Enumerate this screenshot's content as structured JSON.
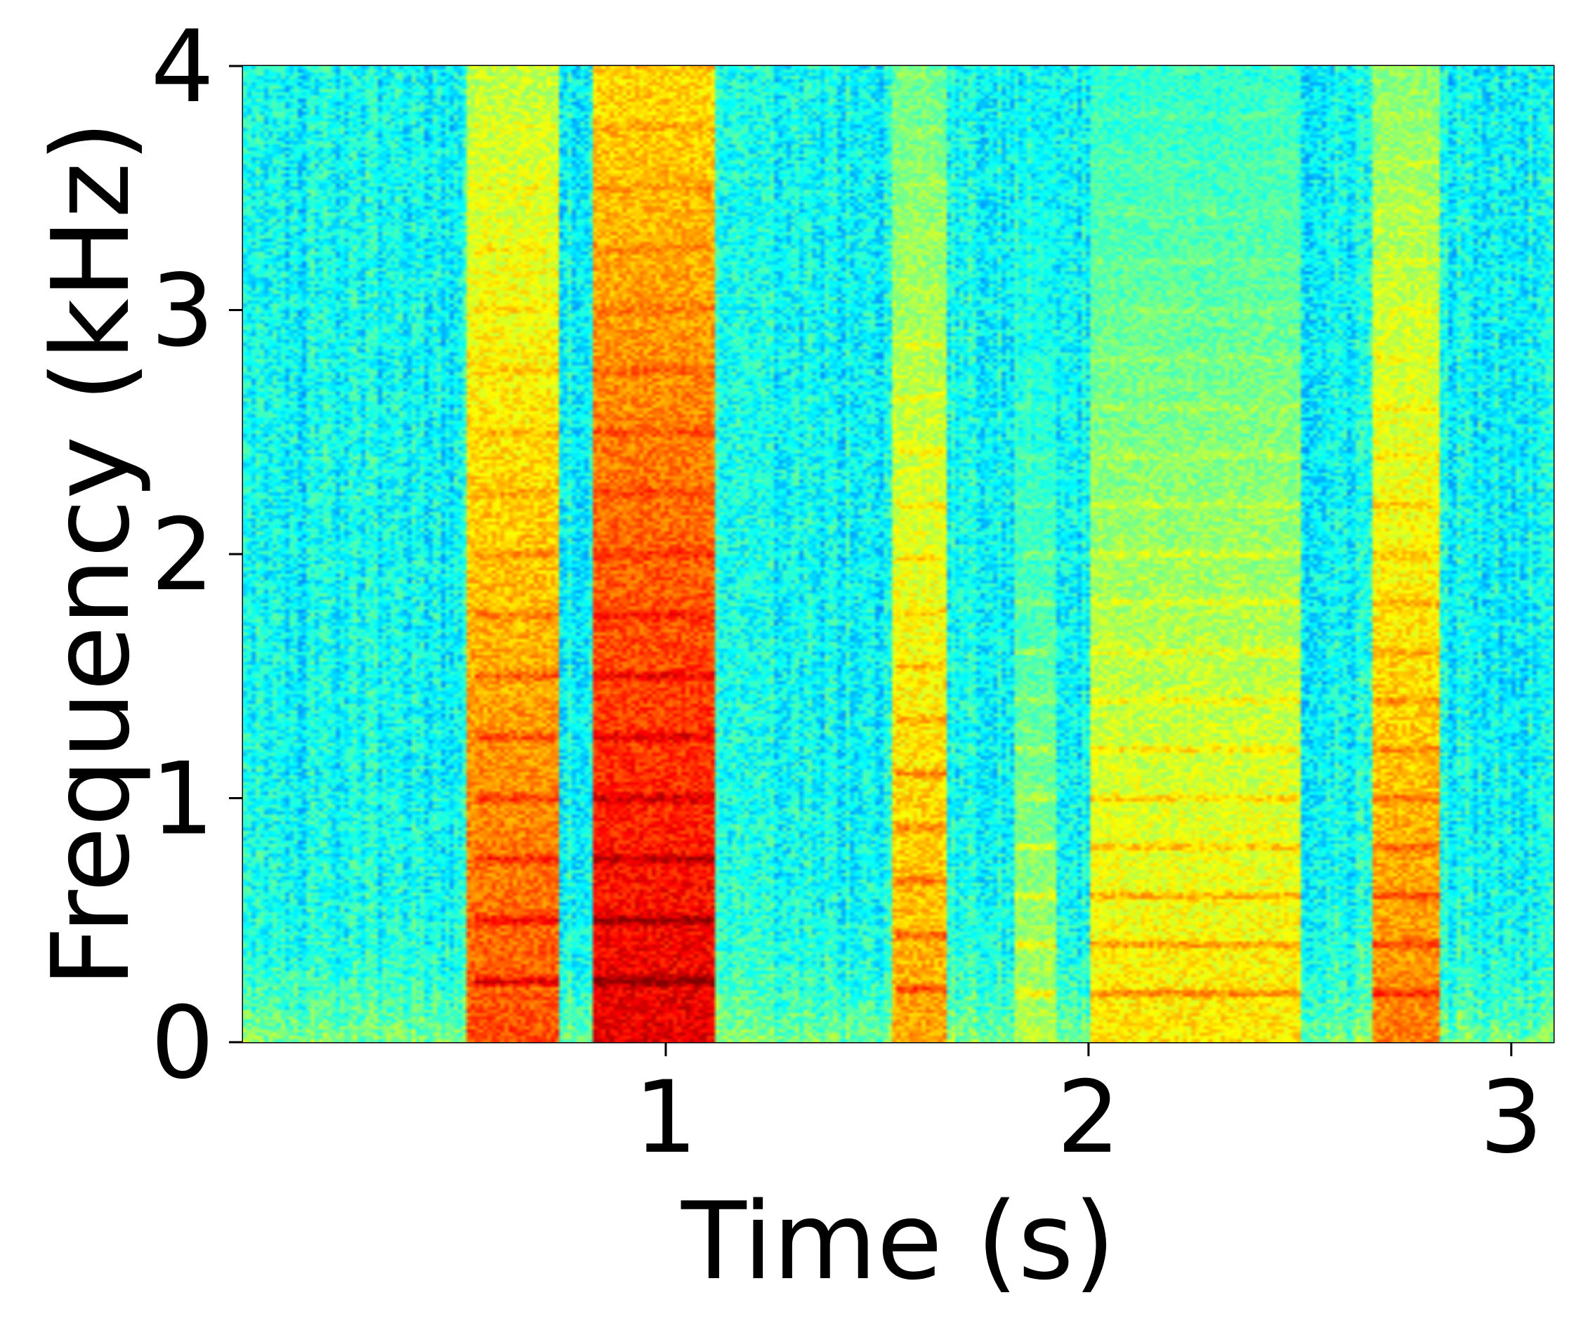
{
  "chart_data": {
    "type": "heatmap",
    "title": "",
    "xlabel": "Time (s)",
    "ylabel": "Frequency (kHz)",
    "xlim": [
      0,
      3.1
    ],
    "ylim": [
      0,
      4
    ],
    "x_ticks": [
      1,
      2,
      3
    ],
    "x_tick_labels": [
      "1",
      "2",
      "3"
    ],
    "y_ticks": [
      0,
      1,
      2,
      3,
      4
    ],
    "y_tick_labels": [
      "0",
      "1",
      "2",
      "3",
      "4"
    ],
    "colormap": "jet",
    "grid": false,
    "colors": {
      "axis": "#000000",
      "background": "#ffffff"
    },
    "voiced_segments_s": [
      [
        0.53,
        0.75,
        0.8
      ],
      [
        0.83,
        1.12,
        0.9
      ],
      [
        1.54,
        1.66,
        0.72
      ],
      [
        1.82,
        1.92,
        0.55
      ],
      [
        2.0,
        2.5,
        0.65
      ],
      [
        2.67,
        2.83,
        0.75
      ]
    ],
    "harmonic_tracks": [
      {
        "t": [
          0.55,
          0.75
        ],
        "f0_khz": 0.25
      },
      {
        "t": [
          0.83,
          1.3
        ],
        "f0_khz": 0.25
      },
      {
        "t": [
          1.55,
          1.68
        ],
        "f0_khz": 0.22
      },
      {
        "t": [
          1.82,
          2.5
        ],
        "f0_khz": 0.2
      },
      {
        "t": [
          2.67,
          2.83
        ],
        "f0_khz": 0.2
      }
    ],
    "background_level": 0.38
  }
}
